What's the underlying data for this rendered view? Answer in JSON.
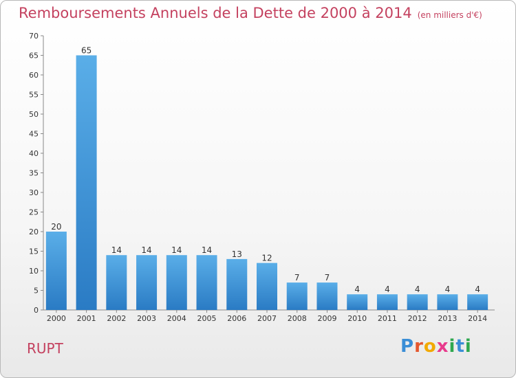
{
  "header": {
    "title": "Remboursements Annuels de la Dette de 2000 à 2014",
    "unit": "(en milliers d'€)"
  },
  "footer": {
    "commune": "RUPT",
    "logo_letters": [
      "P",
      "r",
      "o",
      "x",
      "i",
      "t",
      "i"
    ],
    "logo_colors": [
      "#3a8ed6",
      "#e4572e",
      "#f2a900",
      "#e83a8c",
      "#2fa84f",
      "#3a8ed6",
      "#2fa84f"
    ]
  },
  "colors": {
    "title": "#c4415f",
    "bar_light": "#5aaee8",
    "bar_dark": "#2a7bc4"
  },
  "chart_data": {
    "type": "bar",
    "categories": [
      "2000",
      "2001",
      "2002",
      "2003",
      "2004",
      "2005",
      "2006",
      "2007",
      "2008",
      "2009",
      "2010",
      "2011",
      "2012",
      "2013",
      "2014"
    ],
    "values": [
      20,
      65,
      14,
      14,
      14,
      14,
      13,
      12,
      7,
      7,
      4,
      4,
      4,
      4,
      4
    ],
    "ylim": [
      0,
      70
    ],
    "yticks": [
      0,
      5,
      10,
      15,
      20,
      25,
      30,
      35,
      40,
      45,
      50,
      55,
      60,
      65,
      70
    ],
    "grid": false,
    "data_labels": true
  }
}
